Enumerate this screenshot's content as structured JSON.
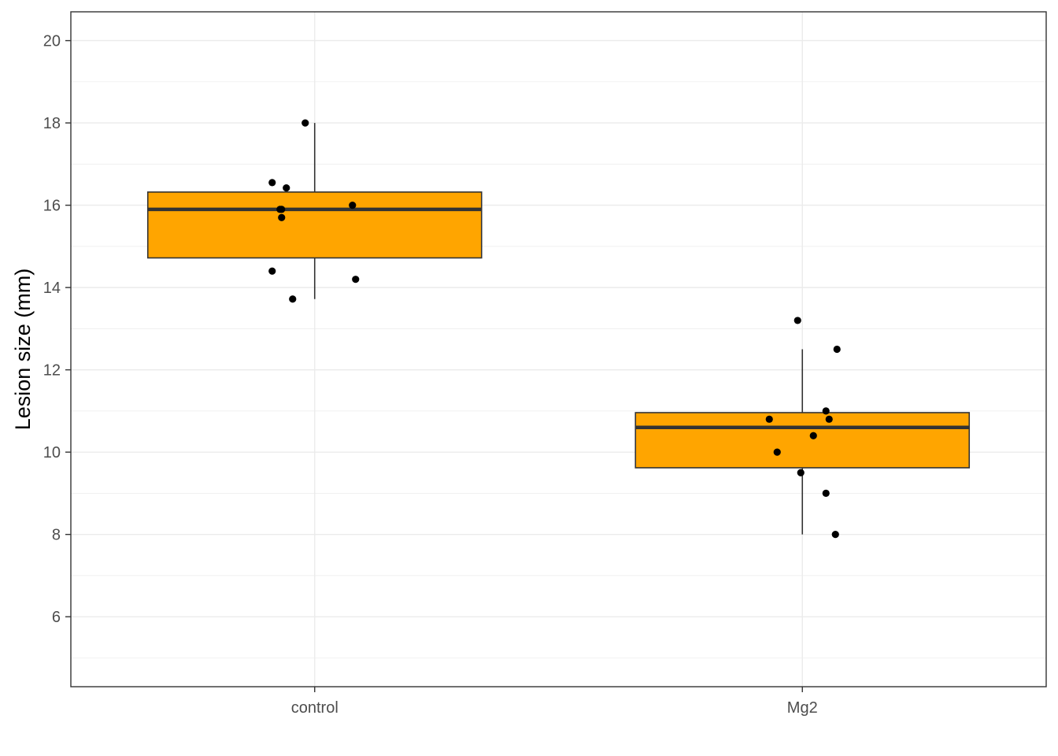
{
  "chart_data": {
    "type": "box",
    "title": "",
    "xlabel": "",
    "ylabel": "Lesion size (mm)",
    "ylim": [
      4.3,
      20.7
    ],
    "yticks": [
      6,
      8,
      10,
      12,
      14,
      16,
      18,
      20
    ],
    "grid": true,
    "categories": [
      "control",
      "Mg2"
    ],
    "boxes": [
      {
        "category": "control",
        "whisker_low": 13.72,
        "q1": 14.72,
        "median": 15.9,
        "q3": 16.32,
        "whisker_high": 18.0
      },
      {
        "category": "Mg2",
        "whisker_low": 8.0,
        "q1": 9.62,
        "median": 10.6,
        "q3": 10.96,
        "whisker_high": 12.5
      }
    ],
    "points": [
      {
        "category": "control",
        "values": [
          18.0,
          16.55,
          16.42,
          15.9,
          15.9,
          15.7,
          16.0,
          14.4,
          14.2,
          13.72
        ]
      },
      {
        "category": "Mg2",
        "values": [
          13.2,
          12.5,
          11.0,
          10.8,
          10.8,
          10.4,
          10.0,
          9.5,
          9.0,
          8.0
        ]
      }
    ],
    "colors": {
      "box_fill": "#FFA500",
      "box_stroke": "#333333",
      "point": "#000000",
      "grid": "#ebebeb",
      "panel_border": "#333333"
    }
  }
}
